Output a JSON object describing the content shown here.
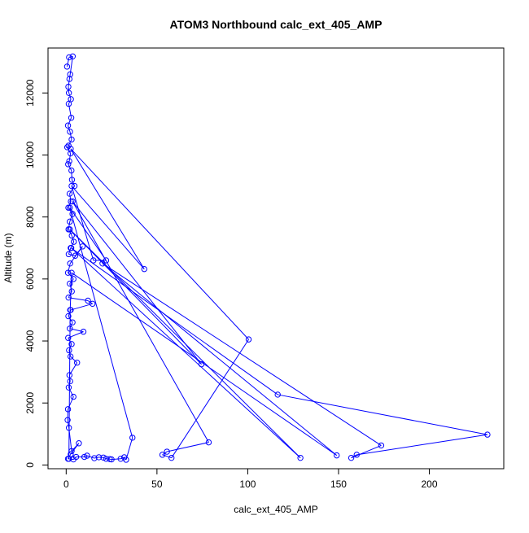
{
  "chart_data": {
    "type": "line",
    "title": "ATOM3 Northbound calc_ext_405_AMP",
    "xlabel": "calc_ext_405_AMP",
    "ylabel": "Altitude (m)",
    "xlim": [
      -10,
      241
    ],
    "ylim": [
      -120,
      13450
    ],
    "x_ticks": [
      0,
      50,
      100,
      150,
      200
    ],
    "y_ticks": [
      0,
      2000,
      4000,
      6000,
      8000,
      10000,
      12000
    ],
    "grid": false,
    "series_color": "#0000ff",
    "markers": "open-circle",
    "series": [
      {
        "points": [
          [
            0.5,
            12850
          ],
          [
            1.6,
            13150
          ],
          [
            3.6,
            13180
          ],
          [
            2.2,
            12600
          ],
          [
            1.8,
            12450
          ],
          [
            1.2,
            12200
          ],
          [
            1.5,
            12000
          ],
          [
            2.6,
            11800
          ],
          [
            1.4,
            11650
          ],
          [
            2.8,
            11200
          ],
          [
            1.0,
            10950
          ],
          [
            2.1,
            10750
          ],
          [
            3.0,
            10500
          ],
          [
            1.3,
            10300
          ],
          [
            0.6,
            10250
          ],
          [
            2.4,
            10050
          ],
          [
            1.7,
            9800
          ],
          [
            1.1,
            9700
          ],
          [
            2.9,
            9500
          ],
          [
            3.2,
            9200
          ],
          [
            4.6,
            9000
          ],
          [
            1.9,
            8750
          ],
          [
            2.6,
            8500
          ],
          [
            1.2,
            8300
          ],
          [
            3.5,
            8100
          ],
          [
            2.0,
            7850
          ],
          [
            1.3,
            7600
          ],
          [
            3.1,
            7400
          ],
          [
            4.2,
            7200
          ],
          [
            2.5,
            7000
          ],
          [
            1.4,
            6800
          ],
          [
            5.0,
            6750
          ],
          [
            9.0,
            7050
          ],
          [
            2.2,
            6500
          ],
          [
            1.0,
            6200
          ],
          [
            4.0,
            6000
          ],
          [
            2.0,
            5850
          ],
          [
            3.1,
            5600
          ],
          [
            1.3,
            5400
          ],
          [
            12.0,
            5300
          ],
          [
            14.5,
            5200
          ],
          [
            2.5,
            5000
          ],
          [
            1.2,
            4800
          ],
          [
            3.5,
            4600
          ],
          [
            2.0,
            4400
          ],
          [
            9.5,
            4300
          ],
          [
            1.1,
            4100
          ],
          [
            3.0,
            3900
          ],
          [
            1.6,
            3700
          ],
          [
            2.4,
            3500
          ],
          [
            6.0,
            3300
          ],
          [
            1.8,
            2900
          ],
          [
            2.2,
            2700
          ],
          [
            1.4,
            2500
          ],
          [
            4.0,
            2200
          ],
          [
            1.0,
            1800
          ],
          [
            0.8,
            1450
          ],
          [
            1.5,
            1200
          ],
          [
            3.0,
            450
          ],
          [
            7.0,
            700
          ],
          [
            2.5,
            350
          ],
          [
            1.0,
            200
          ],
          [
            4.0,
            180
          ],
          [
            5.5,
            260
          ],
          [
            10.0,
            260
          ],
          [
            11.5,
            300
          ],
          [
            15.5,
            220
          ],
          [
            18.0,
            250
          ],
          [
            20.5,
            240
          ],
          [
            22.0,
            200
          ],
          [
            24.0,
            190
          ],
          [
            25.0,
            180
          ],
          [
            30.0,
            200
          ],
          [
            32.0,
            250
          ],
          [
            33.0,
            170
          ],
          [
            36.5,
            880
          ],
          [
            2.0,
            8300
          ],
          [
            22.0,
            6600
          ],
          [
            15.0,
            6600
          ],
          [
            3.0,
            9000
          ],
          [
            43.0,
            6320
          ],
          [
            2.5,
            10200
          ],
          [
            100.5,
            4050
          ],
          [
            58.0,
            230
          ],
          [
            53.0,
            330
          ],
          [
            55.5,
            430
          ],
          [
            78.5,
            730
          ],
          [
            3.5,
            8500
          ],
          [
            74.5,
            3250
          ],
          [
            2.0,
            7600
          ],
          [
            129.0,
            230
          ],
          [
            2.8,
            7000
          ],
          [
            116.5,
            2270
          ],
          [
            232.0,
            980
          ],
          [
            160.0,
            330
          ],
          [
            157.0,
            230
          ],
          [
            173.5,
            630
          ],
          [
            20.0,
            6500
          ],
          [
            149.0,
            310
          ],
          [
            3.0,
            6200
          ],
          [
            2.2,
            5000
          ],
          [
            1.5,
            200
          ]
        ]
      }
    ]
  }
}
